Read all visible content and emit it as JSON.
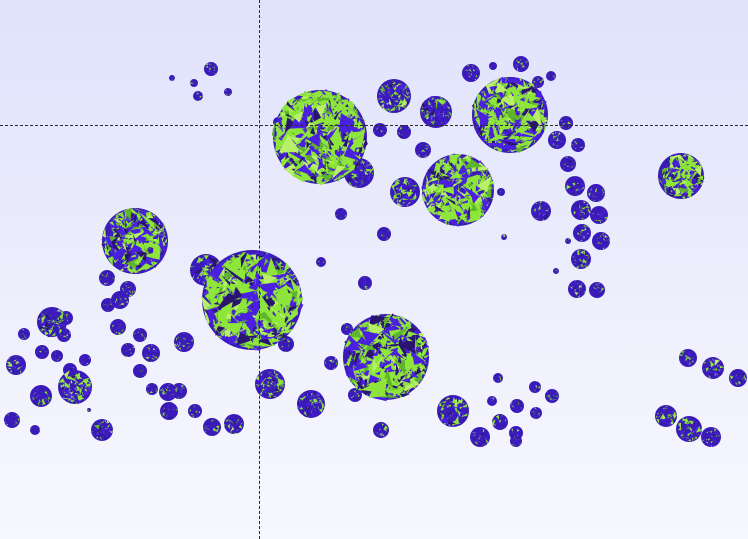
{
  "scene": {
    "description_shown": false,
    "background_top": "#dfe2fb",
    "background_bottom": "#f7f7fe",
    "palette": [
      "#4b1fe0",
      "#3a1ab8",
      "#8ee63a",
      "#5fb52a",
      "#2a1470",
      "#b8f06a"
    ],
    "crosshair_color": "#2b2b2b",
    "object_kind": "faceted-sphere-cluster"
  }
}
